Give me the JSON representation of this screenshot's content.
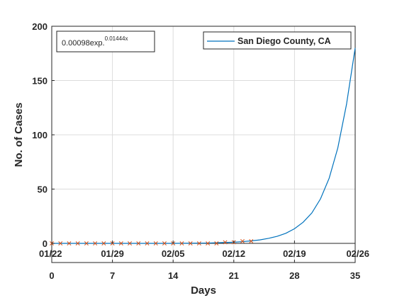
{
  "chart_data": {
    "type": "line",
    "title": "",
    "xlabel": "Days",
    "ylabel": "No. of Cases",
    "xlim": [
      0,
      35
    ],
    "ylim": [
      0,
      200
    ],
    "x_ticks": [
      0,
      7,
      14,
      21,
      28,
      35
    ],
    "y_ticks": [
      0,
      50,
      100,
      150,
      200
    ],
    "date_ticks": [
      "01/22",
      "01/29",
      "02/05",
      "02/12",
      "02/19",
      "02/26"
    ],
    "grid": true,
    "legend_position": "top-right",
    "annotation": {
      "base": "0.00098exp.",
      "exponent": "0.01444x"
    },
    "series": [
      {
        "name": "San Diego County, CA",
        "kind": "line",
        "color": "#0072bd",
        "x": [
          0,
          7,
          14,
          18,
          20,
          21,
          22,
          23,
          24,
          25,
          26,
          27,
          28,
          29,
          30,
          31,
          32,
          33,
          34,
          35
        ],
        "y": [
          0,
          0,
          0,
          0.3,
          0.8,
          1.1,
          1.6,
          2.3,
          3.2,
          4.6,
          6.5,
          9.3,
          13.5,
          19.5,
          28,
          41,
          60,
          88,
          128,
          180
        ]
      },
      {
        "name": "",
        "kind": "marker",
        "marker": "x",
        "color": "#d95319",
        "x": [
          0,
          1,
          2,
          3,
          4,
          5,
          6,
          7,
          8,
          9,
          10,
          11,
          12,
          13,
          14,
          15,
          16,
          17,
          18,
          19,
          20,
          21,
          22,
          23
        ],
        "y": [
          0,
          0,
          0,
          0,
          0,
          0,
          0,
          0,
          0,
          0,
          0,
          0,
          0,
          0,
          0,
          0,
          0,
          0,
          0,
          0,
          1,
          1,
          2,
          2
        ]
      }
    ]
  }
}
